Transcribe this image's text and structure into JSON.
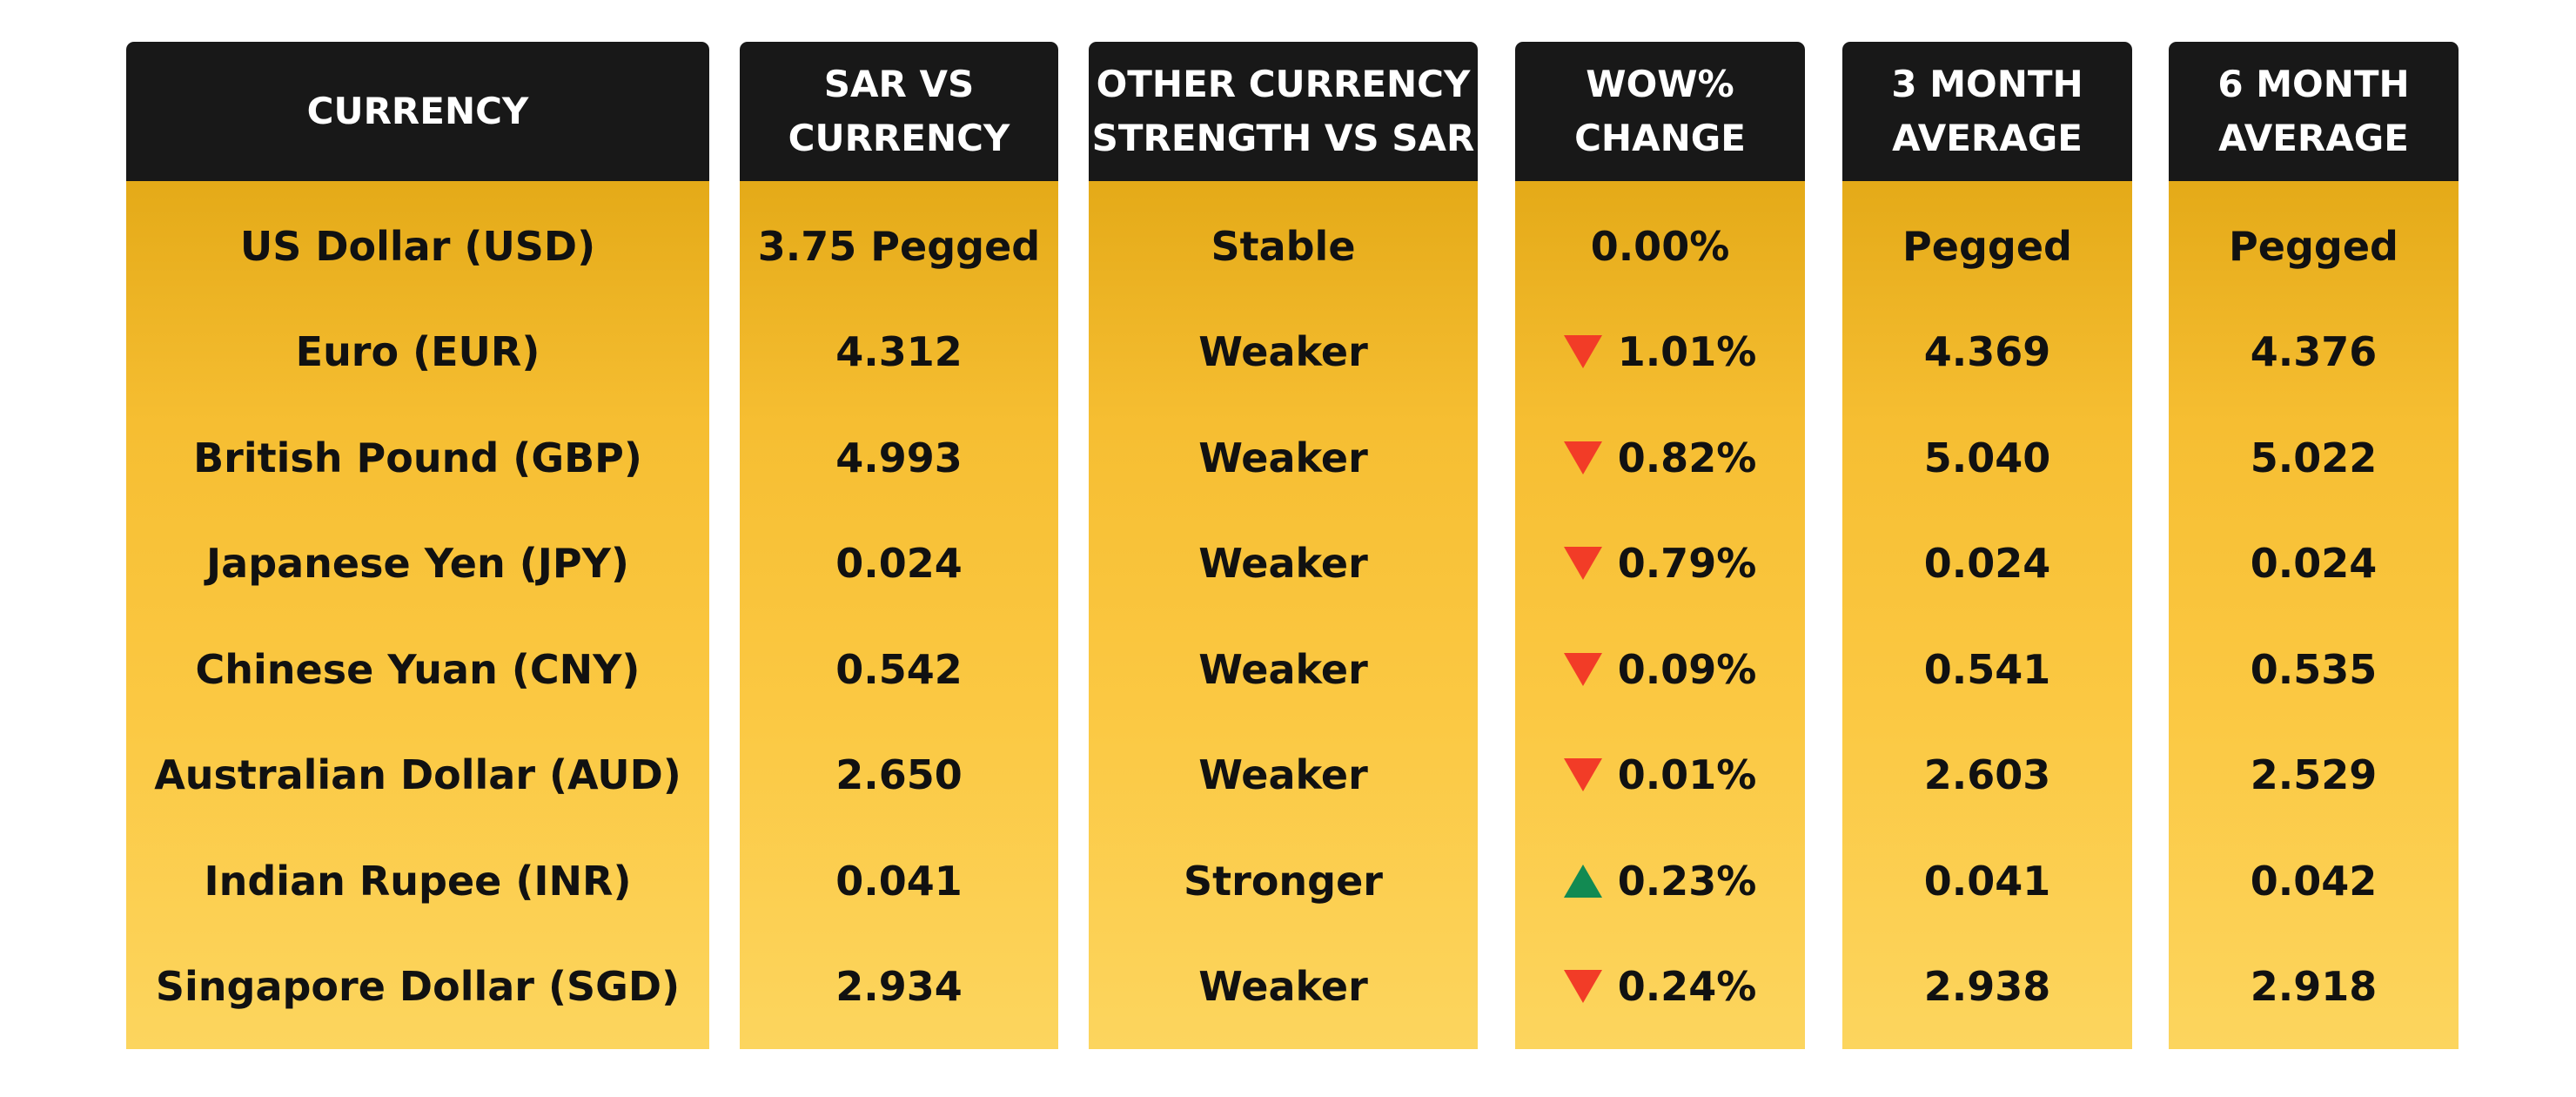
{
  "colors": {
    "header_bg": "#181818",
    "header_text": "#ffffff",
    "body_gold": "#f6be32",
    "arrow_down": "#f23c27",
    "arrow_up": "#128a52"
  },
  "headers": {
    "currency": [
      "CURRENCY"
    ],
    "sar_vs": [
      "SAR VS",
      "CURRENCY"
    ],
    "other_strength": [
      "OTHER CURRENCY",
      "STRENGTH VS SAR"
    ],
    "wow": [
      "WOW%",
      "CHANGE"
    ],
    "avg3": [
      "3 MONTH",
      "AVERAGE"
    ],
    "avg6": [
      "6 MONTH",
      "AVERAGE"
    ]
  },
  "rows": [
    {
      "currency": "US Dollar (USD)",
      "sar_vs": "3.75 Pegged",
      "strength": "Stable",
      "wow": "0.00%",
      "wow_dir": "none",
      "avg3": "Pegged",
      "avg6": "Pegged"
    },
    {
      "currency": "Euro (EUR)",
      "sar_vs": "4.312",
      "strength": "Weaker",
      "wow": "1.01%",
      "wow_dir": "down",
      "avg3": "4.369",
      "avg6": "4.376"
    },
    {
      "currency": "British Pound (GBP)",
      "sar_vs": "4.993",
      "strength": "Weaker",
      "wow": "0.82%",
      "wow_dir": "down",
      "avg3": "5.040",
      "avg6": "5.022"
    },
    {
      "currency": "Japanese Yen (JPY)",
      "sar_vs": "0.024",
      "strength": "Weaker",
      "wow": "0.79%",
      "wow_dir": "down",
      "avg3": "0.024",
      "avg6": "0.024"
    },
    {
      "currency": "Chinese Yuan (CNY)",
      "sar_vs": "0.542",
      "strength": "Weaker",
      "wow": "0.09%",
      "wow_dir": "down",
      "avg3": "0.541",
      "avg6": "0.535"
    },
    {
      "currency": "Australian Dollar (AUD)",
      "sar_vs": "2.650",
      "strength": "Weaker",
      "wow": "0.01%",
      "wow_dir": "down",
      "avg3": "2.603",
      "avg6": "2.529"
    },
    {
      "currency": "Indian Rupee (INR)",
      "sar_vs": "0.041",
      "strength": "Stronger",
      "wow": "0.23%",
      "wow_dir": "up",
      "avg3": "0.041",
      "avg6": "0.042"
    },
    {
      "currency": "Singapore Dollar (SGD)",
      "sar_vs": "2.934",
      "strength": "Weaker",
      "wow": "0.24%",
      "wow_dir": "down",
      "avg3": "2.938",
      "avg6": "2.918"
    }
  ]
}
